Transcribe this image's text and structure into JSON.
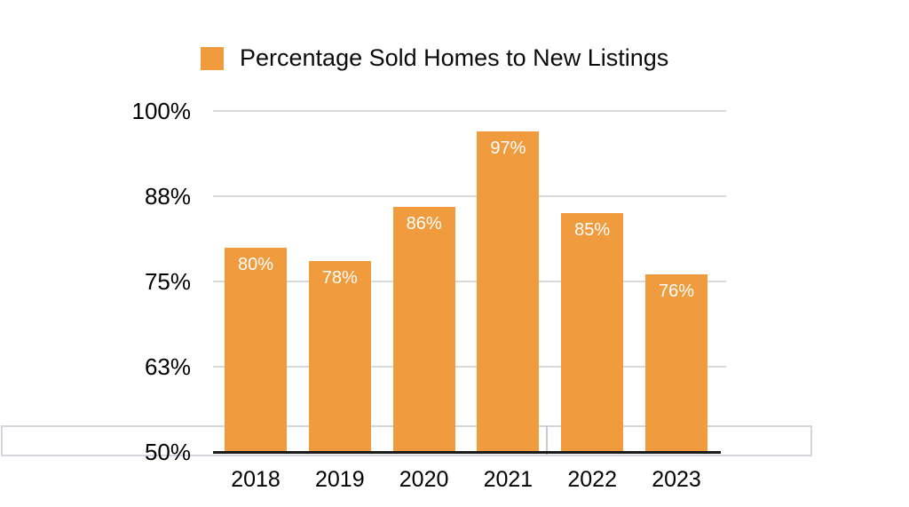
{
  "chart_data": {
    "type": "bar",
    "title": "",
    "legend": {
      "label": "Percentage Sold Homes to New Listings",
      "position": "top"
    },
    "categories": [
      "2018",
      "2019",
      "2020",
      "2021",
      "2022",
      "2023"
    ],
    "values": [
      80,
      78,
      86,
      97,
      85,
      76
    ],
    "bar_labels": [
      "80%",
      "78%",
      "86%",
      "97%",
      "85%",
      "76%"
    ],
    "xlabel": "",
    "ylabel": "",
    "ylim": [
      50,
      100
    ],
    "y_ticks": [
      {
        "value": 100,
        "label": "100%"
      },
      {
        "value": 87.5,
        "label": "88%"
      },
      {
        "value": 75,
        "label": "75%"
      },
      {
        "value": 62.5,
        "label": "63%"
      },
      {
        "value": 50,
        "label": "50%"
      }
    ],
    "grid": "horizontal",
    "legend_position": "top",
    "colors": {
      "bar": "#EF9B3E",
      "gridline": "#D9D9D9",
      "axis_line": "#1B1B1B",
      "bar_label_text": "#FFFFFF",
      "tick_text": "#000000",
      "band_border": "#D3D7DD"
    }
  }
}
